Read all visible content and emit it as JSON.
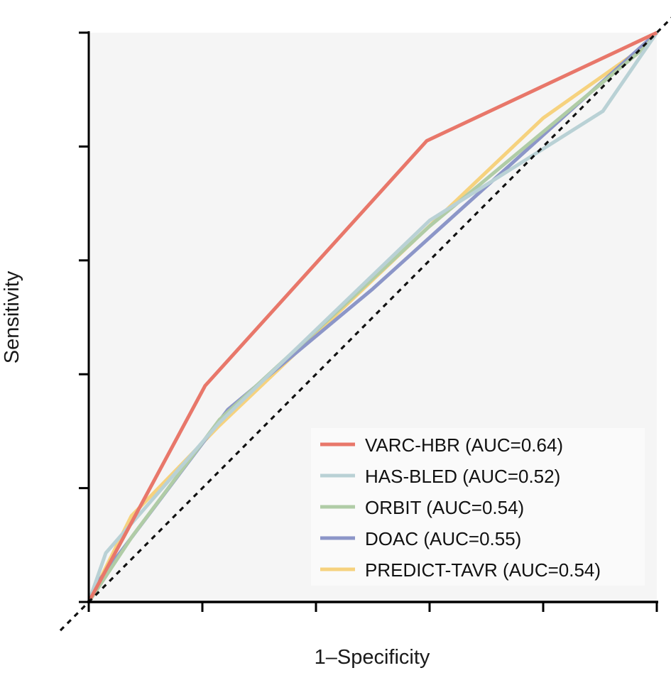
{
  "chart_data": {
    "type": "line",
    "title": "",
    "xlabel": "1–Specificity",
    "ylabel": "Sensitivity",
    "xlim": [
      0,
      1
    ],
    "ylim": [
      0,
      1
    ],
    "x_ticks": [
      0,
      0.2,
      0.4,
      0.6,
      0.8,
      1.0
    ],
    "y_ticks": [
      0,
      0.2,
      0.4,
      0.6,
      0.8,
      1.0
    ],
    "tick_labels_shown": false,
    "grid": false,
    "background": "#f5f5f5",
    "legend_position": "bottom-right",
    "reference_line": {
      "name": "chance",
      "style": "dotted",
      "color": "#111111",
      "points": [
        [
          -0.05,
          -0.05
        ],
        [
          1.03,
          1.03
        ]
      ]
    },
    "series": [
      {
        "name": "VARC-HBR (AUC=0.64)",
        "auc": 0.64,
        "color": "#e8776a",
        "points": [
          [
            0,
            0
          ],
          [
            0.205,
            0.38
          ],
          [
            0.595,
            0.81
          ],
          [
            1,
            1
          ]
        ]
      },
      {
        "name": "HAS-BLED (AUC=0.52)",
        "auc": 0.52,
        "color": "#b9d1d5",
        "points": [
          [
            0,
            0
          ],
          [
            0.03,
            0.086
          ],
          [
            0.23,
            0.315
          ],
          [
            0.6,
            0.67
          ],
          [
            0.905,
            0.862
          ],
          [
            1,
            1
          ]
        ]
      },
      {
        "name": "ORBIT (AUC=0.54)",
        "auc": 0.54,
        "color": "#b0cca6",
        "points": [
          [
            0,
            0
          ],
          [
            0.077,
            0.116
          ],
          [
            0.23,
            0.32
          ],
          [
            0.6,
            0.66
          ],
          [
            0.98,
            0.975
          ],
          [
            1,
            1
          ]
        ]
      },
      {
        "name": "DOAC (AUC=0.55)",
        "auc": 0.55,
        "color": "#8c96c8",
        "points": [
          [
            0,
            0
          ],
          [
            0.02,
            0.04
          ],
          [
            0.245,
            0.338
          ],
          [
            0.5,
            0.55
          ],
          [
            1,
            1
          ]
        ]
      },
      {
        "name": "PREDICT-TAVR (AUC=0.54)",
        "auc": 0.54,
        "color": "#f6d27e",
        "points": [
          [
            0,
            0
          ],
          [
            0.075,
            0.151
          ],
          [
            0.23,
            0.31
          ],
          [
            0.8,
            0.85
          ],
          [
            0.98,
            0.977
          ],
          [
            1,
            1
          ]
        ]
      }
    ]
  }
}
